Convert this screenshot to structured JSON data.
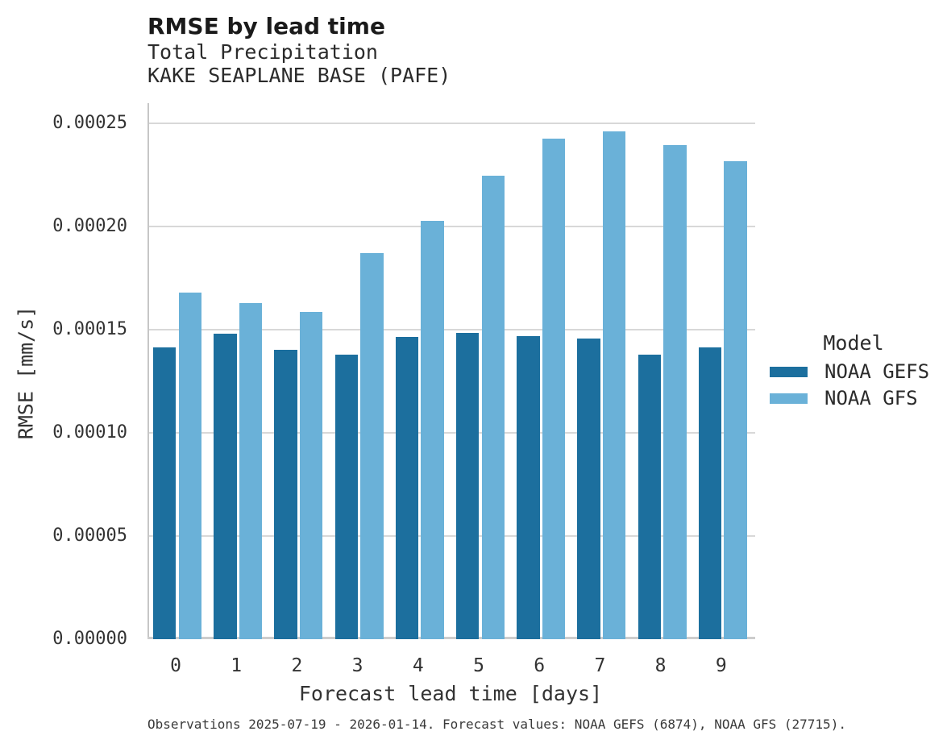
{
  "header": {
    "title": "RMSE by lead time",
    "subtitle_line1": "Total Precipitation",
    "subtitle_line2": "KAKE SEAPLANE BASE (PAFE)"
  },
  "chart_data": {
    "type": "bar",
    "title": "RMSE by lead time",
    "subtitle": [
      "Total Precipitation",
      "KAKE SEAPLANE BASE (PAFE)"
    ],
    "xlabel": "Forecast lead time [days]",
    "ylabel": "RMSE [mm/s]",
    "categories": [
      "0",
      "1",
      "2",
      "3",
      "4",
      "5",
      "6",
      "7",
      "8",
      "9"
    ],
    "series": [
      {
        "name": "NOAA GEFS",
        "color": "#1c6f9e",
        "values": [
          0.0001414,
          0.000148,
          0.0001402,
          0.0001378,
          0.0001465,
          0.0001484,
          0.0001469,
          0.0001456,
          0.0001378,
          0.0001413
        ]
      },
      {
        "name": "NOAA GFS",
        "color": "#6ab1d8",
        "values": [
          0.000168,
          0.0001629,
          0.0001585,
          0.0001872,
          0.0002027,
          0.0002245,
          0.0002426,
          0.0002461,
          0.0002394,
          0.0002318
        ]
      }
    ],
    "ylim": [
      0,
      0.00025
    ],
    "yticks": [
      {
        "v": 0.0,
        "label": "0.00000"
      },
      {
        "v": 5e-05,
        "label": "0.00005"
      },
      {
        "v": 0.0001,
        "label": "0.00010"
      },
      {
        "v": 0.00015,
        "label": "0.00015"
      },
      {
        "v": 0.0002,
        "label": "0.00020"
      },
      {
        "v": 0.00025,
        "label": "0.00025"
      }
    ],
    "grid": true,
    "legend_title": "Model",
    "legend_position": "right"
  },
  "legend": {
    "title": "Model",
    "entries": [
      {
        "label": "NOAA GEFS",
        "color": "#1c6f9e"
      },
      {
        "label": "NOAA GFS",
        "color": "#6ab1d8"
      }
    ]
  },
  "footer": {
    "caption": "Observations 2025-07-19 - 2026-01-14. Forecast values: NOAA GEFS (6874), NOAA GFS (27715)."
  },
  "colors": {
    "noaa_gefs": "#1c6f9e",
    "noaa_gfs": "#6ab1d8",
    "gridline": "#d8d8d8",
    "spine": "#c6c6c6",
    "text": "#333333"
  }
}
